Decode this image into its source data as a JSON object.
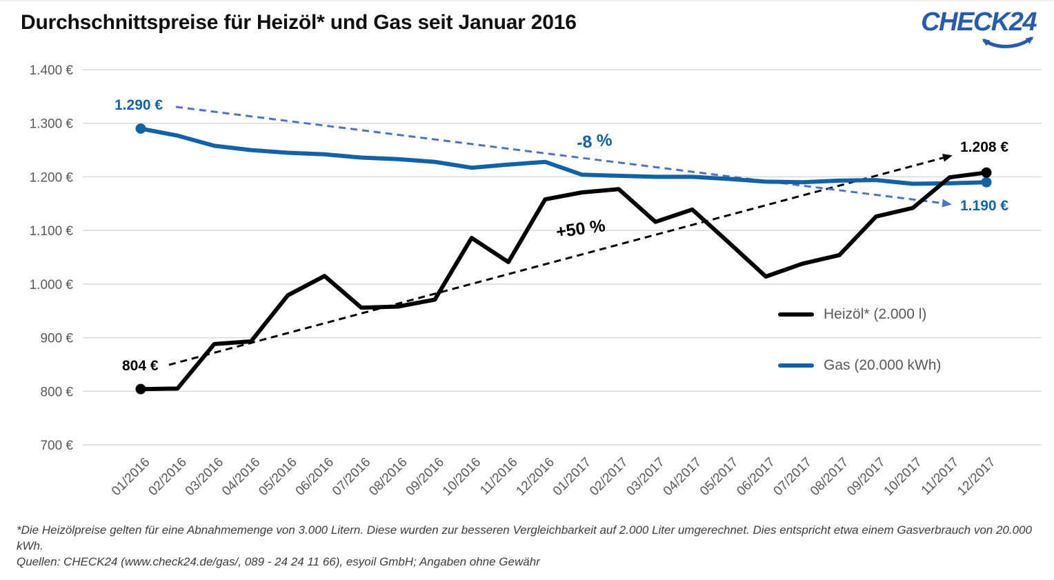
{
  "header": {
    "title": "Durchschnittspreise für Heizöl* und Gas seit Januar 2016",
    "logo_text": "CHECK24"
  },
  "chart_data": {
    "type": "line",
    "title": "Durchschnittspreise für Heizöl* und Gas seit Januar 2016",
    "categories": [
      "01/2016",
      "02/2016",
      "03/2016",
      "04/2016",
      "05/2016",
      "06/2016",
      "07/2016",
      "08/2016",
      "09/2016",
      "10/2016",
      "11/2016",
      "12/2016",
      "01/2017",
      "02/2017",
      "03/2017",
      "04/2017",
      "05/2017",
      "06/2017",
      "07/2017",
      "08/2017",
      "09/2017",
      "10/2017",
      "11/2017",
      "12/2017"
    ],
    "series": [
      {
        "name": "Heizöl* (2.000 l)",
        "color": "#000000",
        "values": [
          804,
          805,
          888,
          893,
          979,
          1015,
          956,
          958,
          971,
          1086,
          1041,
          1158,
          1171,
          1177,
          1116,
          1139,
          1077,
          1014,
          1038,
          1054,
          1126,
          1142,
          1199,
          1208
        ]
      },
      {
        "name": "Gas (20.000 kWh)",
        "color": "#1362a6",
        "values": [
          1290,
          1277,
          1258,
          1250,
          1245,
          1242,
          1236,
          1233,
          1228,
          1217,
          1223,
          1228,
          1204,
          1202,
          1200,
          1200,
          1196,
          1191,
          1190,
          1193,
          1194,
          1187,
          1188,
          1190
        ]
      }
    ],
    "ylim": [
      700,
      1400
    ],
    "yticks": [
      1400,
      1300,
      1200,
      1100,
      1000,
      900,
      800,
      700
    ],
    "ytick_labels": [
      "1.400 €",
      "1.300 €",
      "1.200 €",
      "1.100 €",
      "1.000 €",
      "900 €",
      "800 €",
      "700 €"
    ],
    "grid": "horizontal",
    "legend_position": "middle-right",
    "trend_lines": [
      {
        "applies_to": "Heizöl* (2.000 l)",
        "label": "+50 %",
        "style": "dashed-arrow",
        "color": "#000000"
      },
      {
        "applies_to": "Gas (20.000 kWh)",
        "label": "-8 %",
        "style": "dashed-arrow",
        "color": "#4d76b8"
      }
    ],
    "point_labels": {
      "gas_start": "1.290 €",
      "oil_start": "804 €",
      "oil_end": "1.208 €",
      "gas_end": "1.190 €"
    }
  },
  "footnotes": {
    "note": "*Die Heizölpreise gelten für eine Abnahmemenge von 3.000 Litern. Diese wurden zur besseren Vergleichbarkeit auf 2.000 Liter umgerechnet. Dies entspricht etwa einem Gasverbrauch von 20.000 kWh.",
    "sources": "Quellen: CHECK24 (www.check24.de/gas/, 089 - 24 24 11 66), esyoil GmbH; Angaben ohne Gewähr"
  }
}
